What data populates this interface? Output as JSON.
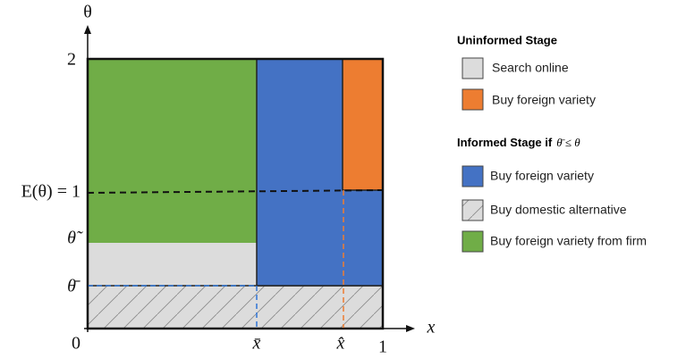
{
  "axes": {
    "y_label": "θ",
    "x_label": "x",
    "origin": "0",
    "y_top": "2",
    "y_mid": "E(θ) = 1",
    "theta_tilde": "θ̃",
    "theta_bar": "θ̄",
    "x_bar": "x̄",
    "x_hat": "x̂",
    "x_end": "1"
  },
  "legend": {
    "uninformed": {
      "title": "Uninformed Stage",
      "items": [
        "Search online",
        "Buy foreign variety"
      ]
    },
    "informed": {
      "title": "Informed Stage if",
      "condition": "θ̄ ≤ θ",
      "items": [
        "Buy foreign variety",
        "Buy domestic alternative",
        "Buy foreign variety from firm"
      ]
    }
  }
}
